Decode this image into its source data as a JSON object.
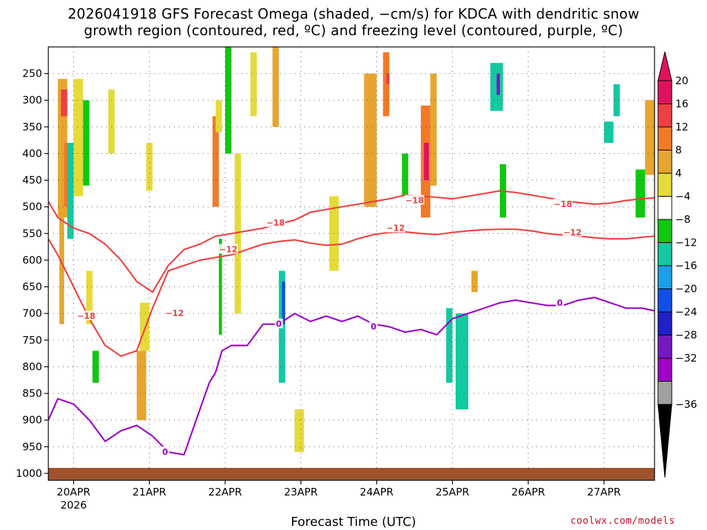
{
  "title_line1": "2026041918 GFS Forecast Omega (shaded, −cm/s) for KDCA with dendritic snow",
  "title_line2": "growth region (contoured, red, ºC) and freezing level (contoured, purple, ºC)",
  "x_axis_label": "Forecast Time (UTC)",
  "credit": "coolwx.com/models",
  "colors": {
    "ground": "#a0522d",
    "dgz_contour": "#f04040",
    "freezing_contour": "#9a00c8"
  },
  "chart_data": {
    "type": "heatmap",
    "ylabel": "",
    "xlabel": "Forecast Time (UTC)",
    "y_pressure_levels_hPa": [
      250,
      300,
      350,
      400,
      450,
      500,
      550,
      600,
      650,
      700,
      750,
      800,
      850,
      900,
      950,
      1000
    ],
    "y_tick_labels": [
      "250",
      "300",
      "350",
      "400",
      "450",
      "500",
      "550",
      "600",
      "650",
      "700",
      "750",
      "800",
      "850",
      "900",
      "950",
      "1000"
    ],
    "y_range_hPa": [
      200,
      1013
    ],
    "x_range_hours": [
      -3,
      189
    ],
    "x_ticks": [
      {
        "label": "20APR",
        "sublabel": "2026",
        "hour": 5
      },
      {
        "label": "21APR",
        "sublabel": "",
        "hour": 29
      },
      {
        "label": "22APR",
        "sublabel": "",
        "hour": 53
      },
      {
        "label": "23APR",
        "sublabel": "",
        "hour": 77
      },
      {
        "label": "24APR",
        "sublabel": "",
        "hour": 101
      },
      {
        "label": "25APR",
        "sublabel": "",
        "hour": 125
      },
      {
        "label": "26APR",
        "sublabel": "",
        "hour": 149
      },
      {
        "label": "27APR",
        "sublabel": "",
        "hour": 173
      }
    ],
    "colorbar": {
      "labels": [
        "20",
        "16",
        "12",
        "8",
        "4",
        "−4",
        "−8",
        "−12",
        "−16",
        "−20",
        "−24",
        "−28",
        "−32",
        "−36"
      ],
      "bins": [
        {
          "lo": 20,
          "hi": 24,
          "color": "#e0115f"
        },
        {
          "lo": 16,
          "hi": 20,
          "color": "#ee4040"
        },
        {
          "lo": 12,
          "hi": 16,
          "color": "#f07a28"
        },
        {
          "lo": 8,
          "hi": 12,
          "color": "#e6a52e"
        },
        {
          "lo": 4,
          "hi": 8,
          "color": "#e6da3a"
        },
        {
          "lo": -4,
          "hi": 4,
          "color": "#ffffff"
        },
        {
          "lo": -8,
          "hi": -4,
          "color": "#10c810"
        },
        {
          "lo": -12,
          "hi": -8,
          "color": "#14c8a0"
        },
        {
          "lo": -16,
          "hi": -12,
          "color": "#1aa0e6"
        },
        {
          "lo": -20,
          "hi": -16,
          "color": "#1050e6"
        },
        {
          "lo": -24,
          "hi": -20,
          "color": "#2020c8"
        },
        {
          "lo": -28,
          "hi": -24,
          "color": "#7818c0"
        },
        {
          "lo": -32,
          "hi": -28,
          "color": "#a000c8"
        },
        {
          "lo": -36,
          "hi": -32,
          "color": "#a0a0a0"
        }
      ],
      "top_triangle_color": "#e0115f",
      "bottom_triangle_color": "#000000"
    },
    "omega_cells": [
      {
        "t0": 0,
        "t1": 3,
        "p0": 260,
        "p1": 520,
        "v": 8
      },
      {
        "t0": 1,
        "t1": 3,
        "p0": 280,
        "p1": 330,
        "v": 16
      },
      {
        "t0": 0.5,
        "t1": 2,
        "p0": 520,
        "p1": 720,
        "v": 8
      },
      {
        "t0": 2,
        "t1": 4,
        "p0": 380,
        "p1": 500,
        "v": 12
      },
      {
        "t0": 3,
        "t1": 5,
        "p0": 380,
        "p1": 560,
        "v": -10
      },
      {
        "t0": 5,
        "t1": 8,
        "p0": 260,
        "p1": 480,
        "v": 6
      },
      {
        "t0": 8,
        "t1": 10,
        "p0": 300,
        "p1": 460,
        "v": -6
      },
      {
        "t0": 9,
        "t1": 11,
        "p0": 620,
        "p1": 720,
        "v": 6
      },
      {
        "t0": 11,
        "t1": 13,
        "p0": 770,
        "p1": 830,
        "v": -6
      },
      {
        "t0": 16,
        "t1": 18,
        "p0": 280,
        "p1": 400,
        "v": 5
      },
      {
        "t0": 25,
        "t1": 28,
        "p0": 770,
        "p1": 900,
        "v": 10
      },
      {
        "t0": 26,
        "t1": 29,
        "p0": 680,
        "p1": 770,
        "v": 6
      },
      {
        "t0": 28,
        "t1": 30,
        "p0": 380,
        "p1": 470,
        "v": 5
      },
      {
        "t0": 49,
        "t1": 51,
        "p0": 330,
        "p1": 500,
        "v": 12
      },
      {
        "t0": 50,
        "t1": 52,
        "p0": 300,
        "p1": 360,
        "v": 6
      },
      {
        "t0": 51,
        "t1": 52,
        "p0": 560,
        "p1": 740,
        "v": -6
      },
      {
        "t0": 53,
        "t1": 55,
        "p0": 200,
        "p1": 400,
        "v": -6
      },
      {
        "t0": 56,
        "t1": 58,
        "p0": 400,
        "p1": 700,
        "v": 6
      },
      {
        "t0": 61,
        "t1": 63,
        "p0": 210,
        "p1": 330,
        "v": 5
      },
      {
        "t0": 68,
        "t1": 70,
        "p0": 200,
        "p1": 350,
        "v": 10
      },
      {
        "t0": 70,
        "t1": 72,
        "p0": 620,
        "p1": 830,
        "v": -10
      },
      {
        "t0": 71,
        "t1": 72,
        "p0": 640,
        "p1": 720,
        "v": -20
      },
      {
        "t0": 75,
        "t1": 78,
        "p0": 880,
        "p1": 960,
        "v": 5
      },
      {
        "t0": 86,
        "t1": 89,
        "p0": 480,
        "p1": 620,
        "v": 6
      },
      {
        "t0": 97,
        "t1": 101,
        "p0": 250,
        "p1": 500,
        "v": 10
      },
      {
        "t0": 103,
        "t1": 105,
        "p0": 210,
        "p1": 330,
        "v": 12
      },
      {
        "t0": 104,
        "t1": 105,
        "p0": 250,
        "p1": 270,
        "v": 16
      },
      {
        "t0": 109,
        "t1": 111,
        "p0": 400,
        "p1": 480,
        "v": -6
      },
      {
        "t0": 115,
        "t1": 118,
        "p0": 310,
        "p1": 520,
        "v": 12
      },
      {
        "t0": 116,
        "t1": 117.5,
        "p0": 380,
        "p1": 450,
        "v": 20
      },
      {
        "t0": 118,
        "t1": 120,
        "p0": 250,
        "p1": 460,
        "v": 8
      },
      {
        "t0": 123,
        "t1": 125,
        "p0": 690,
        "p1": 830,
        "v": -10
      },
      {
        "t0": 126,
        "t1": 130,
        "p0": 700,
        "p1": 880,
        "v": -10
      },
      {
        "t0": 131,
        "t1": 133,
        "p0": 620,
        "p1": 660,
        "v": 10
      },
      {
        "t0": 137,
        "t1": 141,
        "p0": 230,
        "p1": 320,
        "v": -12
      },
      {
        "t0": 139,
        "t1": 140,
        "p0": 250,
        "p1": 290,
        "v": -26
      },
      {
        "t0": 140,
        "t1": 142,
        "p0": 420,
        "p1": 520,
        "v": -6
      },
      {
        "t0": 176,
        "t1": 178,
        "p0": 270,
        "p1": 330,
        "v": -12
      },
      {
        "t0": 173,
        "t1": 176,
        "p0": 340,
        "p1": 380,
        "v": -10
      },
      {
        "t0": 183,
        "t1": 186,
        "p0": 430,
        "p1": 520,
        "v": -8
      },
      {
        "t0": 186,
        "t1": 189,
        "p0": 300,
        "p1": 440,
        "v": 10
      }
    ],
    "contours": [
      {
        "name": "-18 (DGZ)",
        "color": "#f04040",
        "label": "−18",
        "t": [
          -3,
          0,
          5,
          10,
          15,
          20,
          25,
          30,
          35,
          40,
          45,
          50,
          55,
          60,
          65,
          70,
          75,
          80,
          85,
          90,
          95,
          100,
          105,
          110,
          115,
          120,
          125,
          130,
          135,
          140,
          145,
          150,
          155,
          160,
          165,
          170,
          175,
          180,
          185,
          189
        ],
        "p": [
          490,
          520,
          540,
          550,
          570,
          600,
          640,
          660,
          610,
          580,
          570,
          555,
          550,
          545,
          540,
          532,
          525,
          510,
          505,
          500,
          495,
          490,
          485,
          478,
          480,
          482,
          485,
          480,
          475,
          470,
          473,
          478,
          483,
          488,
          492,
          495,
          493,
          488,
          485,
          483
        ]
      },
      {
        "name": "-12 (DGZ)",
        "color": "#f04040",
        "label": "−12",
        "t": [
          -3,
          0,
          5,
          10,
          15,
          20,
          25,
          30,
          35,
          40,
          45,
          50,
          55,
          60,
          65,
          70,
          75,
          80,
          85,
          90,
          95,
          100,
          105,
          110,
          115,
          120,
          125,
          130,
          135,
          140,
          145,
          150,
          155,
          160,
          165,
          170,
          175,
          180,
          185,
          189
        ],
        "p": [
          560,
          590,
          650,
          710,
          760,
          780,
          770,
          690,
          620,
          610,
          600,
          595,
          590,
          580,
          570,
          565,
          562,
          568,
          572,
          570,
          560,
          552,
          548,
          547,
          550,
          552,
          548,
          545,
          543,
          542,
          542,
          545,
          550,
          553,
          555,
          558,
          560,
          560,
          557,
          555
        ]
      },
      {
        "name": "0 (freezing level)",
        "color": "#9a00c8",
        "label": "0",
        "t": [
          -3,
          0,
          5,
          10,
          15,
          20,
          25,
          30,
          35,
          40,
          45,
          48,
          50,
          52,
          55,
          60,
          65,
          70,
          75,
          80,
          85,
          90,
          95,
          100,
          105,
          110,
          115,
          120,
          125,
          130,
          135,
          140,
          145,
          150,
          155,
          160,
          165,
          170,
          175,
          180,
          185,
          189
        ],
        "p": [
          900,
          860,
          870,
          900,
          940,
          920,
          910,
          930,
          960,
          965,
          880,
          830,
          810,
          770,
          760,
          760,
          720,
          720,
          700,
          715,
          705,
          715,
          705,
          720,
          725,
          735,
          730,
          740,
          710,
          700,
          690,
          680,
          675,
          680,
          685,
          685,
          675,
          670,
          680,
          690,
          690,
          695
        ]
      }
    ],
    "contour_labels": [
      {
        "text": "−18",
        "t": 9,
        "p": 705,
        "color": "#f04040"
      },
      {
        "text": "−12",
        "t": 37,
        "p": 700,
        "color": "#f04040"
      },
      {
        "text": "−12",
        "t": 54,
        "p": 580,
        "color": "#f04040"
      },
      {
        "text": "−18",
        "t": 69,
        "p": 530,
        "color": "#f04040"
      },
      {
        "text": "−18",
        "t": 113,
        "p": 488,
        "color": "#f04040"
      },
      {
        "text": "−12",
        "t": 107,
        "p": 540,
        "color": "#f04040"
      },
      {
        "text": "−18",
        "t": 160,
        "p": 495,
        "color": "#f04040"
      },
      {
        "text": "−12",
        "t": 163,
        "p": 548,
        "color": "#f04040"
      },
      {
        "text": "0",
        "t": 34,
        "p": 960,
        "color": "#9a00c8"
      },
      {
        "text": "0",
        "t": 70,
        "p": 720,
        "color": "#9a00c8"
      },
      {
        "text": "0",
        "t": 100,
        "p": 725,
        "color": "#9a00c8"
      },
      {
        "text": "0",
        "t": 159,
        "p": 680,
        "color": "#9a00c8"
      }
    ]
  }
}
